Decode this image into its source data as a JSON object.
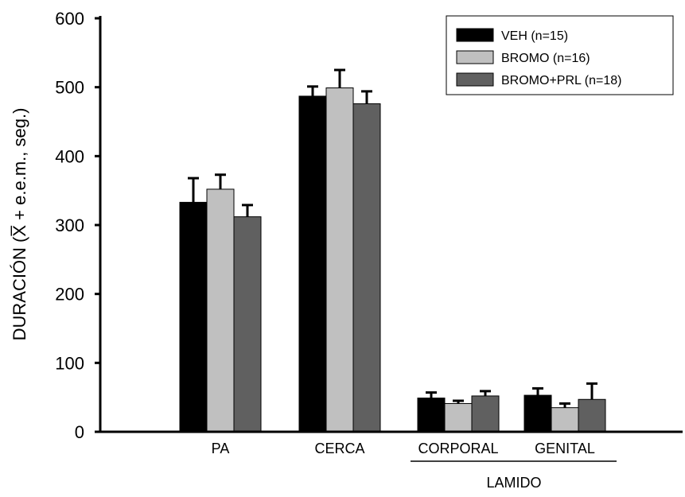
{
  "chart_data": {
    "type": "bar",
    "ylabel": "DURACIÓN (X̅ + e.e.m., seg.)",
    "ylim": [
      0,
      600
    ],
    "yticks": [
      0,
      100,
      200,
      300,
      400,
      500,
      600
    ],
    "categories": [
      "PA",
      "CERCA",
      "CORPORAL",
      "GENITAL"
    ],
    "group_label": "LAMIDO",
    "group_categories": [
      "CORPORAL",
      "GENITAL"
    ],
    "legend_position": "top-right",
    "grid": false,
    "series": [
      {
        "name": "VEH (n=15)",
        "color": "#000000",
        "values": [
          333,
          487,
          49,
          53
        ],
        "errors": [
          35,
          14,
          8,
          10
        ]
      },
      {
        "name": "BROMO (n=16)",
        "color": "#c0c0c0",
        "values": [
          352,
          499,
          41,
          35
        ],
        "errors": [
          21,
          26,
          4,
          6
        ]
      },
      {
        "name": "BROMO+PRL (n=18)",
        "color": "#606060",
        "values": [
          312,
          476,
          52,
          47
        ],
        "errors": [
          17,
          18,
          7,
          23
        ]
      }
    ]
  }
}
